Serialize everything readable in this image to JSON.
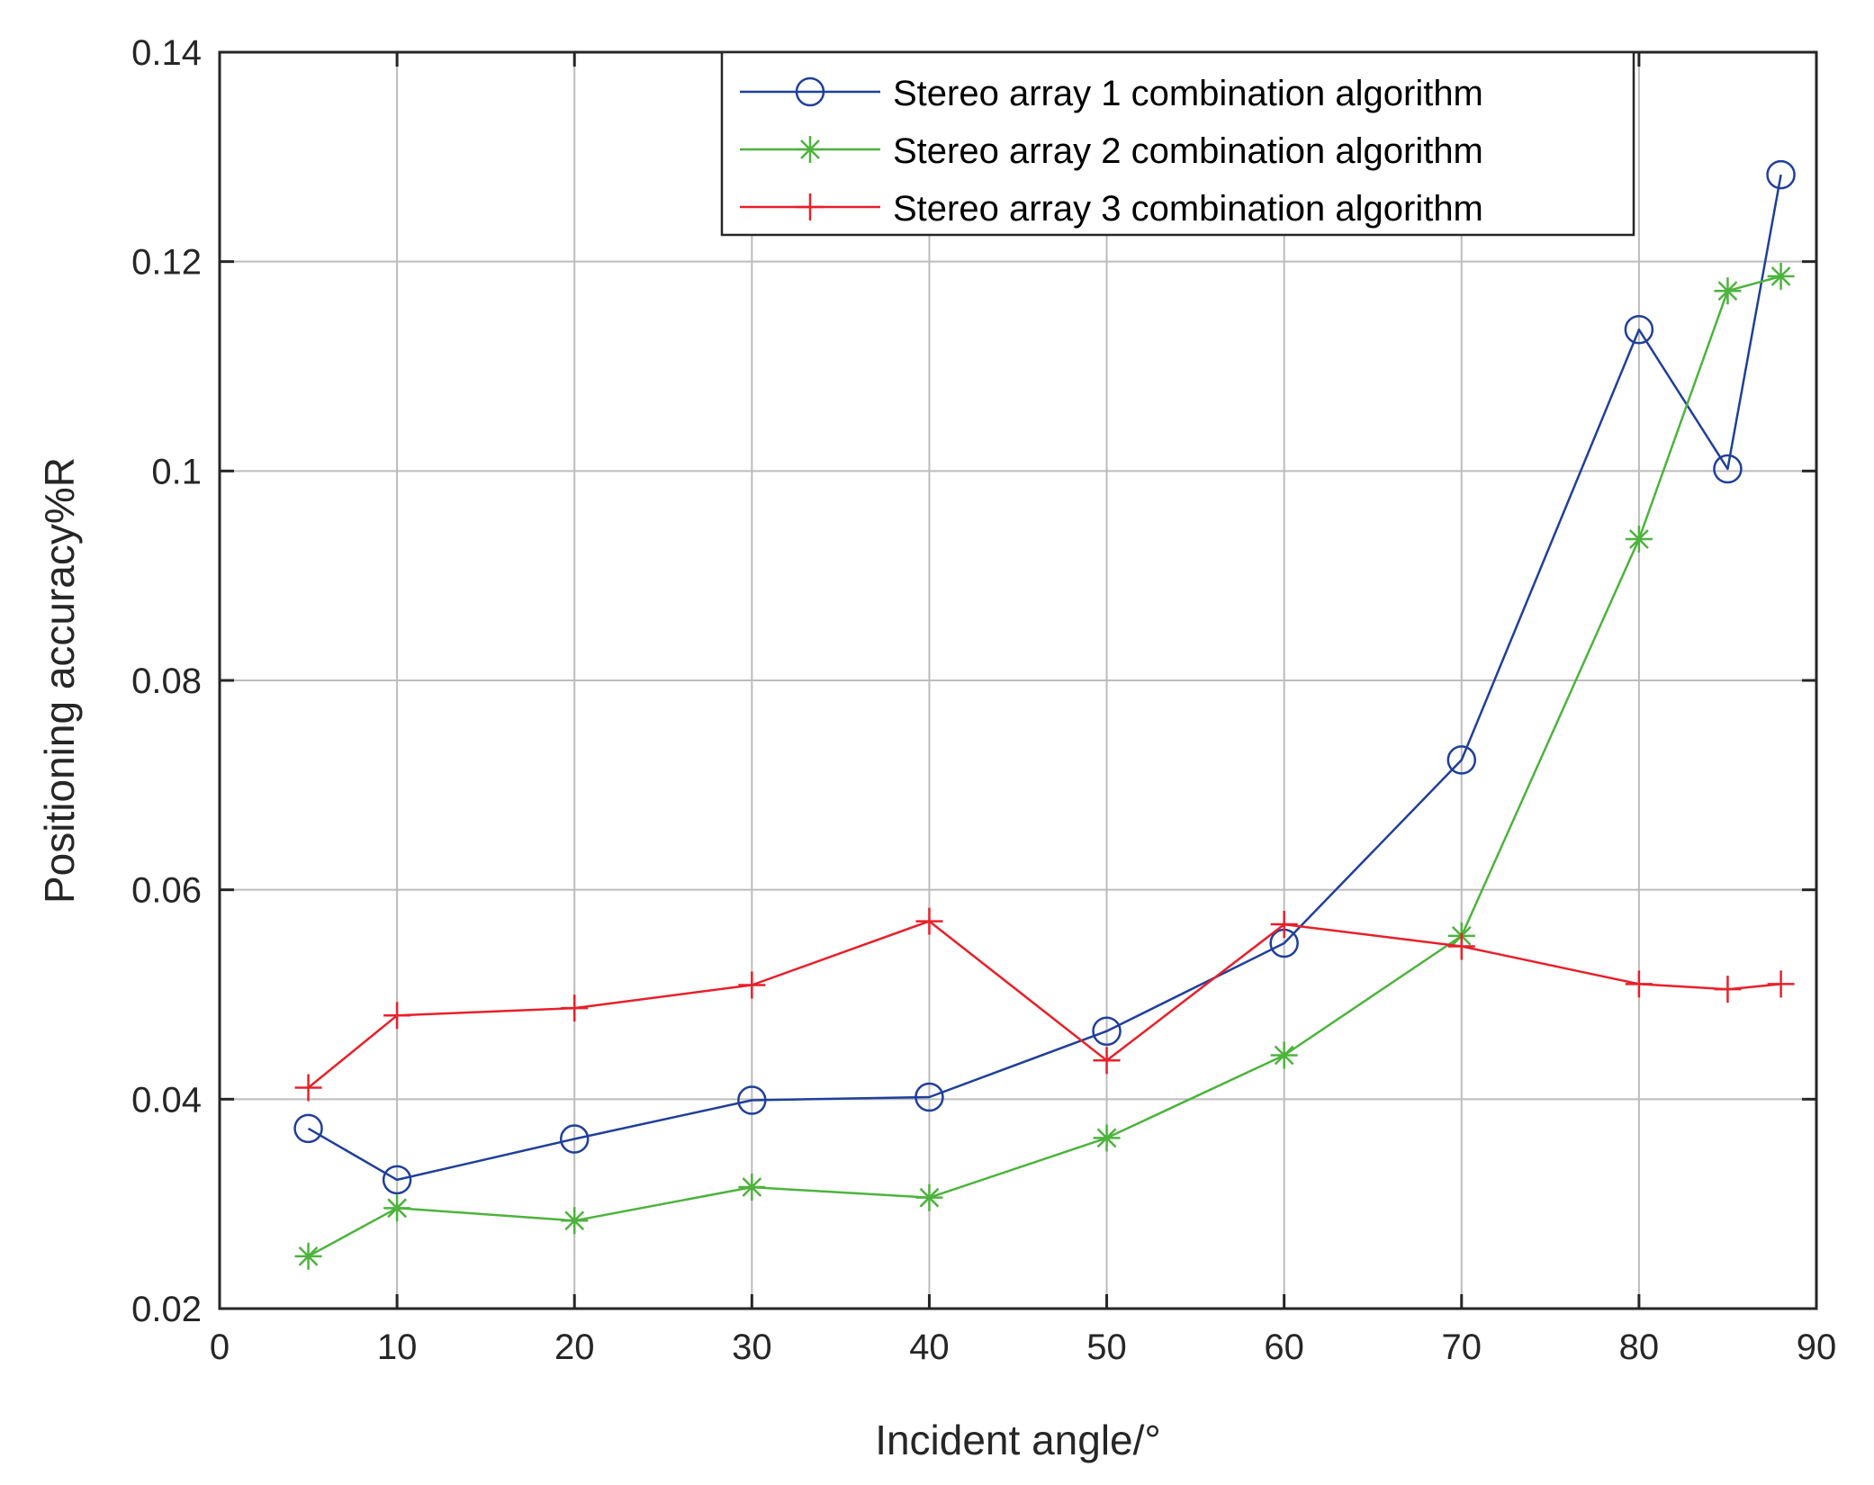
{
  "chart_data": {
    "type": "line",
    "title": "",
    "xlabel": "Incident angle/°",
    "ylabel": "Positioning accuracy%R",
    "xlim": [
      0,
      90
    ],
    "ylim": [
      0.02,
      0.14
    ],
    "x_ticks": [
      0,
      10,
      20,
      30,
      40,
      50,
      60,
      70,
      80,
      90
    ],
    "x_tick_labels": [
      "0",
      "10",
      "20",
      "30",
      "40",
      "50",
      "60",
      "70",
      "80",
      "90"
    ],
    "y_ticks": [
      0.02,
      0.04,
      0.06,
      0.08,
      0.1,
      0.12,
      0.14
    ],
    "y_tick_labels": [
      "0.02",
      "0.04",
      "0.06",
      "0.08",
      "0.1",
      "0.12",
      "0.14"
    ],
    "grid": true,
    "legend_position": "top-right",
    "x": [
      5,
      10,
      20,
      30,
      40,
      50,
      60,
      70,
      80,
      85,
      88
    ],
    "series": [
      {
        "name": "Stereo array 1 combination algorithm",
        "color": "#1f3f9a",
        "marker": "circle",
        "values": [
          0.0372,
          0.0323,
          0.0362,
          0.0399,
          0.0402,
          0.0465,
          0.0549,
          0.0724,
          0.1135,
          0.1002,
          0.1283
        ]
      },
      {
        "name": "Stereo array 2 combination algorithm",
        "color": "#4db33d",
        "marker": "asterisk",
        "values": [
          0.025,
          0.0296,
          0.0284,
          0.0316,
          0.0306,
          0.0363,
          0.0442,
          0.0556,
          0.0935,
          0.1172,
          0.1186
        ]
      },
      {
        "name": "Stereo array 3 combination algorithm",
        "color": "#e8202a",
        "marker": "plus",
        "values": [
          0.0411,
          0.048,
          0.0487,
          0.0509,
          0.057,
          0.0437,
          0.0567,
          0.0546,
          0.051,
          0.0505,
          0.051
        ]
      }
    ]
  }
}
